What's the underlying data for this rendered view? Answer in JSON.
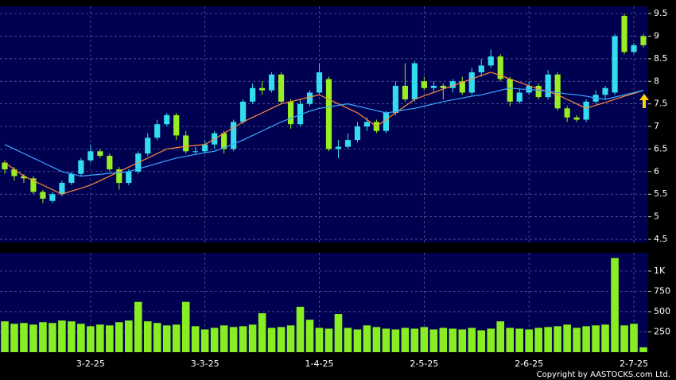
{
  "chart_data": [
    {
      "type": "candlestick",
      "up_color": "#33ddee",
      "down_color": "#99ee22",
      "grid": true,
      "ylim": [
        4.43,
        9.66
      ],
      "yticks": [
        4.5,
        5,
        5.5,
        6,
        6.5,
        7,
        7.5,
        8,
        8.5,
        9,
        9.5
      ],
      "categories": [
        null,
        null,
        null,
        null,
        null,
        null,
        null,
        null,
        null,
        "3-2-25",
        null,
        null,
        null,
        null,
        null,
        null,
        null,
        null,
        null,
        null,
        null,
        "3-3-25",
        null,
        null,
        null,
        null,
        null,
        null,
        null,
        null,
        null,
        null,
        null,
        "1-4-25",
        null,
        null,
        null,
        null,
        null,
        null,
        null,
        null,
        null,
        null,
        "2-5-25",
        null,
        null,
        null,
        null,
        null,
        null,
        null,
        null,
        null,
        null,
        "2-6-25",
        null,
        null,
        null,
        null,
        null,
        null,
        null,
        null,
        null,
        null,
        "2-7-25",
        null
      ],
      "open": [
        6.2,
        6.05,
        5.9,
        5.85,
        5.55,
        5.35,
        5.5,
        5.75,
        5.95,
        6.25,
        6.45,
        6.35,
        6.05,
        5.75,
        6.0,
        6.4,
        6.75,
        7.05,
        7.25,
        6.8,
        6.45,
        6.45,
        6.6,
        6.85,
        6.5,
        7.1,
        7.55,
        7.85,
        7.8,
        8.15,
        7.55,
        7.05,
        7.5,
        7.75,
        8.05,
        6.5,
        6.55,
        6.7,
        7.0,
        7.1,
        6.9,
        7.3,
        7.9,
        7.6,
        8.0,
        7.85,
        7.9,
        7.85,
        8.0,
        7.75,
        8.2,
        8.35,
        8.55,
        8.05,
        7.55,
        7.75,
        7.9,
        7.65,
        8.15,
        7.4,
        7.2,
        7.15,
        7.55,
        7.7,
        7.75,
        9.45,
        8.65,
        9.0
      ],
      "high": [
        6.25,
        6.1,
        5.95,
        5.9,
        5.6,
        5.55,
        5.8,
        6.0,
        6.3,
        6.6,
        6.5,
        6.4,
        6.1,
        6.05,
        6.45,
        6.85,
        7.15,
        7.3,
        7.3,
        6.9,
        6.55,
        6.7,
        6.9,
        6.9,
        7.15,
        7.6,
        7.95,
        8.0,
        8.2,
        8.2,
        7.6,
        7.6,
        7.8,
        8.4,
        8.1,
        6.7,
        6.85,
        7.1,
        7.2,
        7.15,
        7.35,
        8.0,
        8.4,
        8.45,
        8.1,
        8.0,
        7.95,
        8.05,
        8.1,
        8.3,
        8.5,
        8.7,
        8.6,
        8.1,
        7.85,
        8.0,
        7.95,
        8.25,
        8.2,
        7.45,
        7.25,
        7.6,
        7.8,
        7.9,
        9.05,
        9.5,
        8.85,
        9.05
      ],
      "low": [
        5.95,
        5.8,
        5.75,
        5.5,
        5.3,
        5.3,
        5.45,
        5.7,
        5.9,
        6.2,
        6.3,
        6.0,
        5.6,
        5.7,
        5.95,
        6.35,
        6.7,
        7.0,
        6.7,
        6.4,
        6.4,
        6.4,
        6.5,
        6.4,
        6.45,
        7.05,
        7.5,
        7.7,
        7.75,
        7.5,
        6.95,
        7.0,
        7.45,
        7.7,
        6.45,
        6.3,
        6.5,
        6.65,
        6.9,
        6.85,
        6.85,
        7.25,
        7.55,
        7.55,
        7.8,
        7.75,
        7.6,
        7.75,
        7.7,
        7.7,
        8.1,
        8.3,
        8.0,
        7.45,
        7.5,
        7.7,
        7.6,
        7.6,
        7.35,
        7.1,
        7.1,
        7.1,
        7.5,
        7.6,
        7.7,
        8.6,
        8.6,
        8.75
      ],
      "close": [
        6.05,
        5.9,
        5.85,
        5.55,
        5.4,
        5.5,
        5.75,
        5.95,
        6.25,
        6.45,
        6.35,
        6.05,
        5.75,
        6.0,
        6.4,
        6.75,
        7.05,
        7.25,
        6.8,
        6.45,
        6.45,
        6.6,
        6.85,
        6.5,
        7.1,
        7.55,
        7.85,
        7.8,
        8.15,
        7.55,
        7.05,
        7.5,
        7.75,
        8.2,
        6.5,
        6.55,
        6.7,
        7.0,
        7.1,
        6.9,
        7.3,
        7.9,
        7.6,
        8.4,
        7.85,
        7.9,
        7.85,
        8.0,
        7.75,
        8.2,
        8.35,
        8.55,
        8.05,
        7.55,
        7.75,
        7.9,
        7.65,
        8.15,
        7.4,
        7.2,
        7.15,
        7.55,
        7.7,
        7.85,
        9.0,
        8.65,
        8.8,
        8.8
      ],
      "lines": [
        {
          "color": "#ff8c3c",
          "values": [
            6.2,
            6.05,
            5.9,
            5.8,
            5.7,
            5.6,
            5.5,
            5.57,
            5.63,
            5.7,
            5.8,
            5.9,
            6.0,
            6.1,
            6.2,
            6.3,
            6.4,
            6.5,
            6.53,
            6.56,
            6.58,
            6.6,
            6.72,
            6.85,
            6.97,
            7.1,
            7.2,
            7.3,
            7.4,
            7.5,
            7.55,
            7.6,
            7.65,
            7.7,
            7.6,
            7.5,
            7.4,
            7.3,
            7.15,
            7.0,
            7.15,
            7.3,
            7.45,
            7.6,
            7.68,
            7.75,
            7.83,
            7.9,
            7.98,
            8.05,
            8.13,
            8.2,
            8.13,
            8.05,
            7.98,
            7.9,
            7.83,
            7.77,
            7.7,
            7.6,
            7.5,
            7.4,
            7.47,
            7.53,
            7.6,
            7.67,
            7.73,
            7.8
          ]
        },
        {
          "color": "#3aa8ff",
          "values": [
            6.6,
            6.5,
            6.4,
            6.3,
            6.2,
            6.1,
            6.0,
            5.95,
            5.9,
            5.92,
            5.94,
            5.96,
            5.98,
            6.0,
            6.06,
            6.12,
            6.18,
            6.24,
            6.3,
            6.34,
            6.38,
            6.42,
            6.45,
            6.53,
            6.61,
            6.7,
            6.8,
            6.9,
            7.0,
            7.1,
            7.18,
            7.26,
            7.34,
            7.4,
            7.43,
            7.47,
            7.5,
            7.45,
            7.4,
            7.35,
            7.3,
            7.33,
            7.37,
            7.4,
            7.45,
            7.5,
            7.55,
            7.59,
            7.63,
            7.67,
            7.7,
            7.75,
            7.8,
            7.85,
            7.83,
            7.82,
            7.8,
            7.78,
            7.75,
            7.72,
            7.7,
            7.67,
            7.63,
            7.6,
            7.65,
            7.7,
            7.75,
            7.8
          ]
        }
      ]
    },
    {
      "type": "bar",
      "color": "#88ee22",
      "grid": true,
      "ylim": [
        0,
        1225
      ],
      "yticks": [
        250,
        500,
        750,
        {
          "value": 1000,
          "label": "1K"
        }
      ],
      "values": [
        380,
        350,
        360,
        340,
        370,
        360,
        390,
        380,
        350,
        320,
        340,
        330,
        370,
        390,
        620,
        380,
        360,
        330,
        340,
        620,
        320,
        280,
        300,
        330,
        310,
        320,
        340,
        480,
        300,
        310,
        330,
        560,
        400,
        300,
        290,
        470,
        300,
        280,
        330,
        310,
        290,
        280,
        300,
        290,
        310,
        280,
        300,
        290,
        280,
        300,
        270,
        290,
        380,
        300,
        290,
        280,
        300,
        310,
        320,
        340,
        300,
        320,
        330,
        340,
        1160,
        330,
        350,
        60
      ]
    }
  ],
  "copyright": "Copyright by AASTOCKS.com Ltd."
}
